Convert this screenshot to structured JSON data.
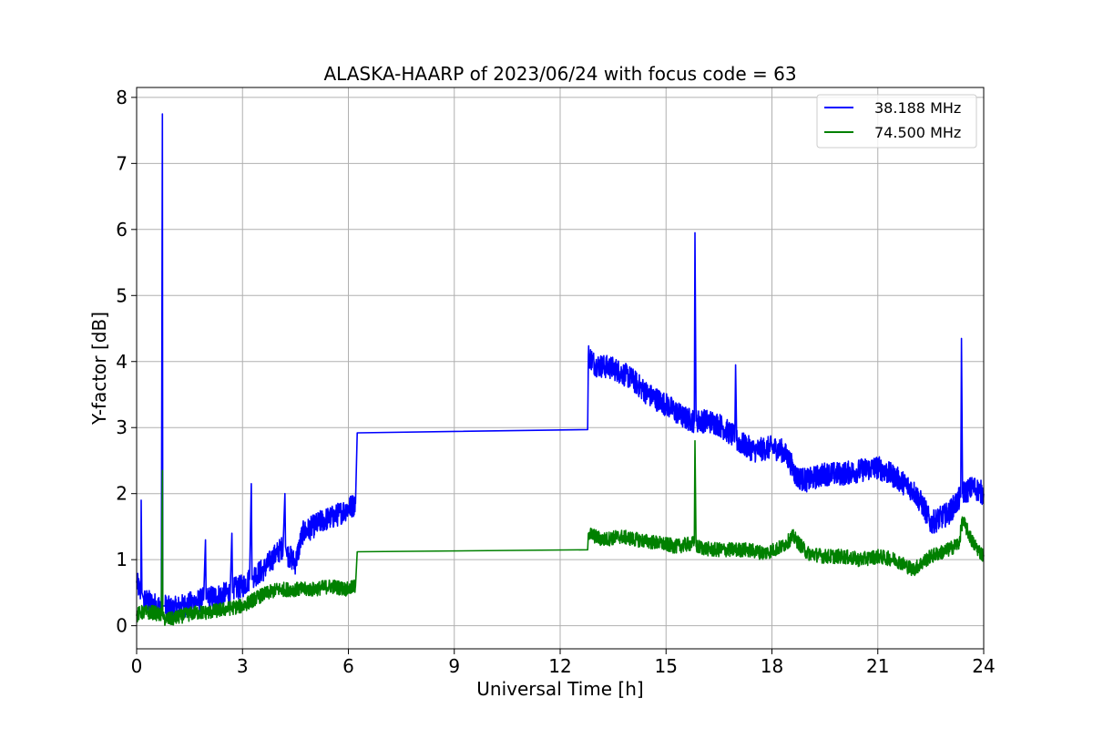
{
  "chart_data": {
    "type": "line",
    "title": "ALASKA-HAARP of 2023/06/24 with focus code = 63",
    "xlabel": "Universal Time [h]",
    "ylabel": "Y-factor [dB]",
    "xlim": [
      0,
      24
    ],
    "ylim": [
      -0.35,
      8.15
    ],
    "xticks": [
      0,
      3,
      6,
      9,
      12,
      15,
      18,
      21,
      24
    ],
    "yticks": [
      0,
      1,
      2,
      3,
      4,
      5,
      6,
      7,
      8
    ],
    "grid": true,
    "legend_position": "top-right",
    "series": [
      {
        "name": "38.188 MHz",
        "color": "#0000ff",
        "x": [
          0,
          0.12,
          0.13,
          0.15,
          0.2,
          0.4,
          0.6,
          0.7,
          0.73,
          0.74,
          0.76,
          0.8,
          1.0,
          1.3,
          1.6,
          1.9,
          1.95,
          1.97,
          2.0,
          2.3,
          2.65,
          2.7,
          2.72,
          2.75,
          3.0,
          3.2,
          3.25,
          3.27,
          3.3,
          3.6,
          3.9,
          4.15,
          4.2,
          4.22,
          4.25,
          4.5,
          4.7,
          5.0,
          5.3,
          5.6,
          5.9,
          6.2,
          6.25,
          6.28,
          12.78,
          12.8,
          13.0,
          13.5,
          14.0,
          14.5,
          15.0,
          15.5,
          15.8,
          15.82,
          15.85,
          16.2,
          16.5,
          16.95,
          16.97,
          17.0,
          17.5,
          18.0,
          18.3,
          18.5,
          18.7,
          19.0,
          19.5,
          20.0,
          20.5,
          21.0,
          21.5,
          22.0,
          22.3,
          22.5,
          23.0,
          23.35,
          23.37,
          23.4,
          23.7,
          24.0
        ],
        "values": [
          0.65,
          0.5,
          1.9,
          0.5,
          0.4,
          0.35,
          0.3,
          0.3,
          7.75,
          0.3,
          0.3,
          0.3,
          0.25,
          0.3,
          0.35,
          0.4,
          1.3,
          0.4,
          0.42,
          0.45,
          0.5,
          1.4,
          0.5,
          0.55,
          0.6,
          0.7,
          2.15,
          0.7,
          0.75,
          0.85,
          1.05,
          1.2,
          2.0,
          1.2,
          1.1,
          0.95,
          1.4,
          1.5,
          1.6,
          1.65,
          1.75,
          1.85,
          2.92,
          2.92,
          2.97,
          4.1,
          3.95,
          3.9,
          3.75,
          3.5,
          3.35,
          3.15,
          3.1,
          5.95,
          3.1,
          3.1,
          3.05,
          2.85,
          3.95,
          2.8,
          2.65,
          2.7,
          2.65,
          2.5,
          2.25,
          2.2,
          2.3,
          2.3,
          2.35,
          2.4,
          2.25,
          2.05,
          1.8,
          1.55,
          1.7,
          1.95,
          4.35,
          2.0,
          2.1,
          2.0
        ]
      },
      {
        "name": "74.500 MHz",
        "color": "#008000",
        "x": [
          0,
          0.1,
          0.3,
          0.5,
          0.7,
          0.73,
          0.74,
          0.76,
          1.0,
          1.3,
          1.7,
          2.0,
          2.5,
          3.0,
          3.5,
          4.0,
          4.5,
          5.0,
          5.5,
          6.0,
          6.2,
          6.25,
          6.28,
          12.78,
          12.8,
          13.2,
          13.7,
          14.2,
          14.8,
          15.3,
          15.8,
          15.82,
          15.85,
          16.3,
          16.8,
          17.3,
          17.8,
          18.3,
          18.6,
          19.0,
          19.5,
          20.0,
          20.5,
          21.0,
          21.5,
          22.0,
          22.5,
          23.0,
          23.3,
          23.4,
          23.7,
          24.0
        ],
        "values": [
          0.15,
          0.2,
          0.2,
          0.2,
          0.15,
          2.35,
          0.15,
          0.1,
          0.1,
          0.15,
          0.2,
          0.2,
          0.25,
          0.3,
          0.45,
          0.55,
          0.55,
          0.55,
          0.6,
          0.55,
          0.6,
          1.12,
          1.12,
          1.15,
          1.4,
          1.3,
          1.35,
          1.3,
          1.25,
          1.2,
          1.25,
          2.8,
          1.2,
          1.15,
          1.15,
          1.15,
          1.1,
          1.2,
          1.35,
          1.1,
          1.05,
          1.05,
          1.0,
          1.05,
          1.0,
          0.85,
          1.05,
          1.15,
          1.25,
          1.6,
          1.25,
          1.05
        ]
      }
    ]
  }
}
